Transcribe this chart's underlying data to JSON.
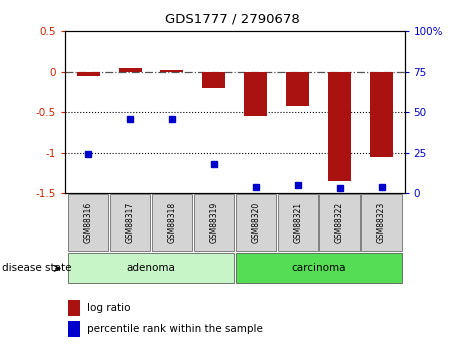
{
  "title": "GDS1777 / 2790678",
  "samples": [
    "GSM88316",
    "GSM88317",
    "GSM88318",
    "GSM88319",
    "GSM88320",
    "GSM88321",
    "GSM88322",
    "GSM88323"
  ],
  "log_ratio": [
    -0.05,
    0.04,
    0.02,
    -0.2,
    -0.55,
    -0.42,
    -1.35,
    -1.05
  ],
  "percentile_rank": [
    24,
    46,
    46,
    18,
    4,
    5,
    3,
    4
  ],
  "ylim_left": [
    -1.5,
    0.5
  ],
  "ylim_right": [
    0,
    100
  ],
  "left_ticks": [
    0.5,
    0,
    -0.5,
    -1.0,
    -1.5
  ],
  "right_ticks": [
    100,
    75,
    50,
    25,
    0
  ],
  "groups": [
    {
      "label": "adenoma",
      "samples": [
        0,
        1,
        2,
        3
      ],
      "color": "#c8f5c8"
    },
    {
      "label": "carcinoma",
      "samples": [
        4,
        5,
        6,
        7
      ],
      "color": "#66dd66"
    }
  ],
  "bar_color": "#aa1111",
  "dot_color": "#0000cc",
  "bar_width": 0.55,
  "left_label_color": "#cc2200",
  "right_label_color": "#0000cc",
  "disease_state_label": "disease state",
  "legend_log_ratio": "log ratio",
  "legend_percentile": "percentile rank within the sample",
  "adenoma_light": "#c8f5c8",
  "carcinoma_green": "#55dd55"
}
